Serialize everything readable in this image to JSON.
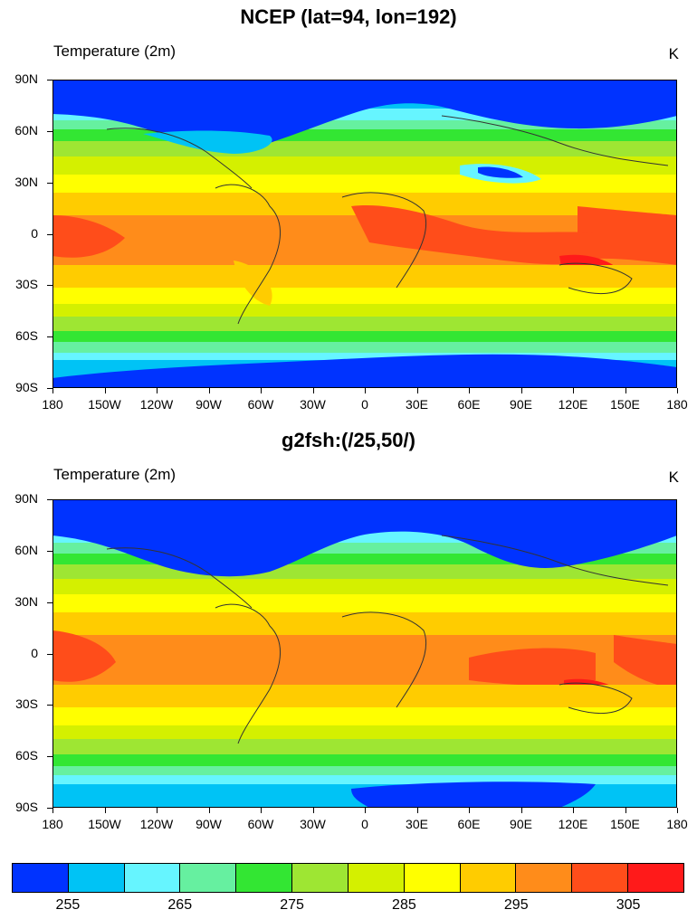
{
  "panels": [
    {
      "title": "NCEP (lat=94, lon=192)",
      "left_title": "Temperature (2m)",
      "units": "K"
    },
    {
      "title": "g2fsh:(/25,50/)",
      "left_title": "Temperature (2m)",
      "units": "K"
    }
  ],
  "axes": {
    "lat_labels": [
      "90N",
      "60N",
      "30N",
      "0",
      "30S",
      "60S",
      "90S"
    ],
    "lon_labels": [
      "180",
      "150W",
      "120W",
      "90W",
      "60W",
      "30W",
      "0",
      "30E",
      "60E",
      "90E",
      "120E",
      "150E",
      "180"
    ]
  },
  "colorbar": {
    "colors": [
      "#0033ff",
      "#00c3f5",
      "#66f5ff",
      "#66f0a0",
      "#33e633",
      "#9ee633",
      "#d4f000",
      "#ffff00",
      "#ffcc00",
      "#ff8c1a",
      "#ff4d1a",
      "#ff1a1a"
    ],
    "labels": [
      "255",
      "265",
      "275",
      "285",
      "295",
      "305"
    ]
  },
  "chart_data": {
    "type": "heatmap",
    "variable": "Temperature (2m)",
    "units": "K",
    "xlim": [
      -180,
      180
    ],
    "ylim": [
      -90,
      90
    ],
    "contour_levels": [
      255,
      260,
      265,
      270,
      275,
      280,
      285,
      290,
      295,
      300,
      305
    ]
  }
}
